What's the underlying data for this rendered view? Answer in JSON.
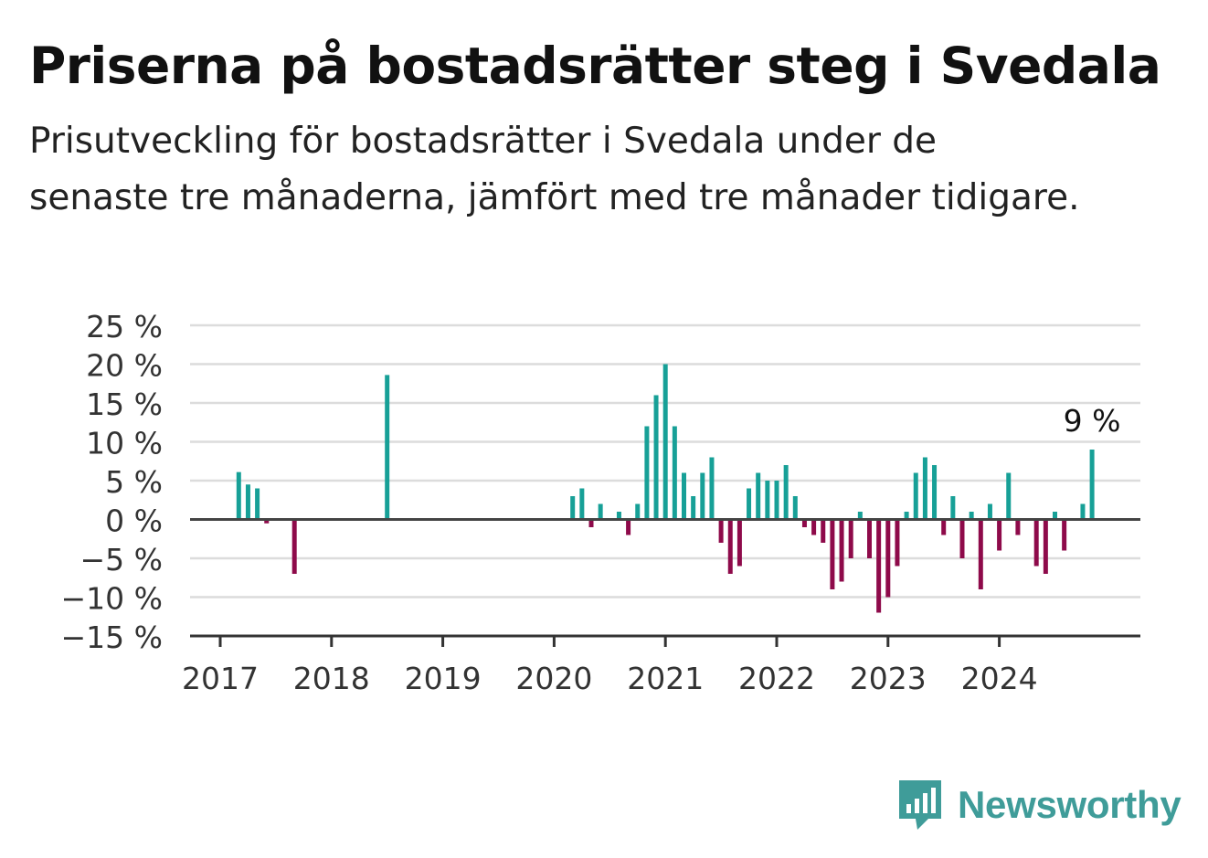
{
  "title": "Priserna på bostadsrätter steg i Svedala",
  "subtitle": "Prisutveckling för bostadsrätter i Svedala under de senaste tre månaderna, jämfört med tre månader tidigare.",
  "brand": {
    "name": "Newsworthy",
    "color": "#3f9c99",
    "icon": "bar-chart-speech-bubble-icon"
  },
  "colors": {
    "positive": "#17a097",
    "negative": "#8e0a4a",
    "grid": "#dcdcdc",
    "axis": "#333333"
  },
  "chart_data": {
    "type": "bar",
    "title": "Priserna på bostadsrätter steg i Svedala",
    "xlabel": "",
    "ylabel": "",
    "ylim": [
      -15,
      25
    ],
    "y_ticks": [
      25,
      20,
      15,
      10,
      5,
      0,
      -5,
      -10,
      -15
    ],
    "y_tick_labels": [
      "25 %",
      "20 %",
      "15 %",
      "10 %",
      "5 %",
      "0 %",
      "−5 %",
      "−10 %",
      "−15 %"
    ],
    "x_tick_labels": [
      "2017",
      "2018",
      "2019",
      "2020",
      "2021",
      "2022",
      "2023",
      "2024"
    ],
    "grid": true,
    "annotation": {
      "x": "2024-11",
      "label": "9 %"
    },
    "x": [
      "2017-03",
      "2017-04",
      "2017-05",
      "2017-06",
      "2017-09",
      "2018-07",
      "2020-03",
      "2020-04",
      "2020-05",
      "2020-06",
      "2020-08",
      "2020-09",
      "2020-10",
      "2020-11",
      "2020-12",
      "2021-01",
      "2021-02",
      "2021-03",
      "2021-04",
      "2021-05",
      "2021-06",
      "2021-07",
      "2021-08",
      "2021-09",
      "2021-10",
      "2021-11",
      "2021-12",
      "2022-01",
      "2022-02",
      "2022-03",
      "2022-04",
      "2022-05",
      "2022-06",
      "2022-07",
      "2022-08",
      "2022-09",
      "2022-10",
      "2022-11",
      "2022-12",
      "2023-01",
      "2023-02",
      "2023-03",
      "2023-04",
      "2023-05",
      "2023-06",
      "2023-07",
      "2023-08",
      "2023-09",
      "2023-10",
      "2023-11",
      "2023-12",
      "2024-01",
      "2024-02",
      "2024-03",
      "2024-05",
      "2024-06",
      "2024-07",
      "2024-08",
      "2024-10",
      "2024-11"
    ],
    "values": [
      6.1,
      4.5,
      4,
      -0.5,
      -7,
      18.6,
      3,
      4,
      -1,
      2,
      1,
      -2,
      2,
      12,
      16,
      20,
      12,
      6,
      3,
      6,
      8,
      -3,
      -7,
      -6,
      4,
      6,
      5,
      5,
      7,
      3,
      -1,
      -2,
      -3,
      -9,
      -8,
      -5,
      1,
      -5,
      -12,
      -10,
      -6,
      1,
      6,
      8,
      7,
      -2,
      3,
      -5,
      1,
      -9,
      2,
      -4,
      6,
      -2,
      -6,
      -7,
      1,
      -4,
      2,
      9
    ]
  }
}
